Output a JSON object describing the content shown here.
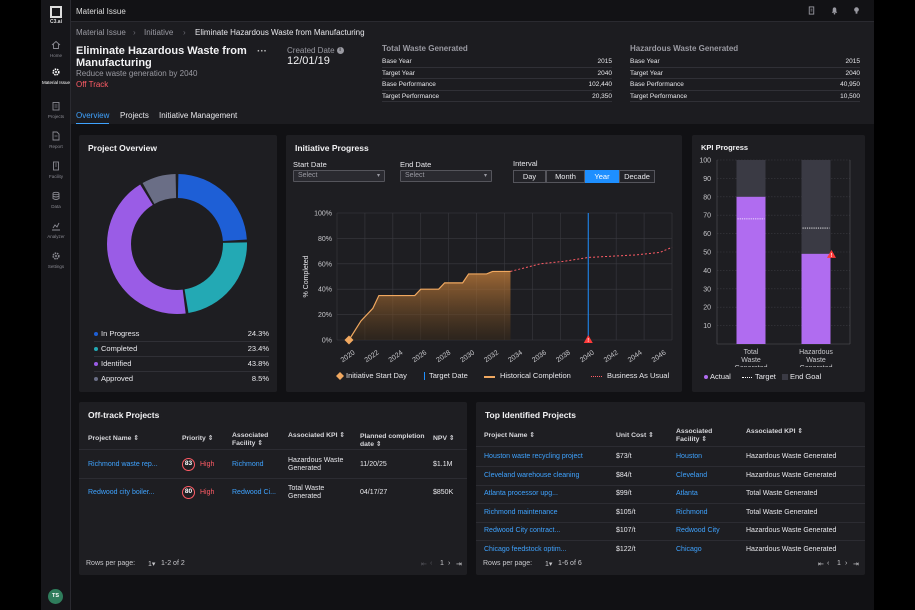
{
  "app": {
    "logo_text": "C3.ai",
    "window_title": "Material Issue",
    "user_initials": "TS"
  },
  "sidebar": {
    "items": [
      {
        "label": "Home",
        "icon": "home-icon"
      },
      {
        "label": "Material Issue",
        "icon": "gear-icon"
      },
      {
        "label": "Projects",
        "icon": "clipboard-icon"
      },
      {
        "label": "Report",
        "icon": "document-icon"
      },
      {
        "label": "Facility",
        "icon": "building-icon"
      },
      {
        "label": "Data",
        "icon": "database-icon"
      },
      {
        "label": "Analyzer",
        "icon": "chart-icon"
      },
      {
        "label": "Settings",
        "icon": "settings-icon"
      }
    ]
  },
  "breadcrumb": [
    "Material Issue",
    "Initiative",
    "Eliminate Hazardous Waste from Manufacturing"
  ],
  "header": {
    "title": "Eliminate Hazardous Waste from Manufacturing",
    "subtitle": "Reduce waste generation by 2040",
    "status": "Off Track",
    "created_label": "Created Date",
    "created_value": "12/01/19"
  },
  "stats": {
    "total": {
      "title": "Total Waste Generated",
      "rows": [
        {
          "k": "Base Year",
          "v": "2015"
        },
        {
          "k": "Target Year",
          "v": "2040"
        },
        {
          "k": "Base Performance",
          "v": "102,440"
        },
        {
          "k": "Target Performance",
          "v": "20,350"
        }
      ]
    },
    "hazard": {
      "title": "Hazardous Waste Generated",
      "rows": [
        {
          "k": "Base Year",
          "v": "2015"
        },
        {
          "k": "Target Year",
          "v": "2040"
        },
        {
          "k": "Base Performance",
          "v": "40,950"
        },
        {
          "k": "Target Performance",
          "v": "10,500"
        }
      ]
    }
  },
  "tabs": [
    "Overview",
    "Projects",
    "Initiative Management"
  ],
  "project_overview": {
    "title": "Project Overview",
    "items": [
      {
        "label": "In Progress",
        "value": "24.3%",
        "pct": 24.3,
        "color": "#1e5fd6"
      },
      {
        "label": "Completed",
        "value": "23.4%",
        "pct": 23.4,
        "color": "#23a9b4"
      },
      {
        "label": "Identified",
        "value": "43.8%",
        "pct": 43.8,
        "color": "#9a5ce6"
      },
      {
        "label": "Approved",
        "value": "8.5%",
        "pct": 8.5,
        "color": "#6a6e86"
      }
    ]
  },
  "initiative_progress": {
    "title": "Initiative Progress",
    "start_label": "Start Date",
    "end_label": "End Date",
    "start_placeholder": "Select",
    "end_placeholder": "Select",
    "interval_label": "Interval",
    "intervals": [
      "Day",
      "Month",
      "Year",
      "Decade"
    ],
    "selected_interval": "Year",
    "legend": [
      "Initiative Start Day",
      "Target Date",
      "Historical Completion",
      "Business As Usual"
    ]
  },
  "chart_data": [
    {
      "type": "area",
      "title": "Initiative Progress",
      "ylabel": "% Completed",
      "ylim": [
        0,
        100
      ],
      "yticks": [
        "100%",
        "80%",
        "60%",
        "40%",
        "20%",
        "0%"
      ],
      "x_tick_labels": [
        "2020",
        "2022",
        "2024",
        "2026",
        "2028",
        "2030",
        "2032",
        "2034",
        "2036",
        "2038",
        "2040",
        "2042",
        "2044",
        "2046"
      ],
      "xlim": [
        2019,
        2047
      ],
      "series": [
        {
          "name": "Historical Completion",
          "x": [
            2020,
            2021,
            2022,
            2022.5,
            2024,
            2025.5,
            2026,
            2027.5,
            2028,
            2029.5,
            2030,
            2031.5,
            2032,
            2033.5
          ],
          "y": [
            0,
            15,
            25,
            35,
            35,
            35,
            40,
            40,
            45,
            45,
            52,
            52,
            54,
            54
          ]
        },
        {
          "name": "Business As Usual",
          "x": [
            2033.5,
            2036,
            2038,
            2040,
            2042,
            2044,
            2046,
            2047
          ],
          "y": [
            54,
            60,
            62,
            65,
            66,
            67,
            69,
            73
          ]
        }
      ],
      "initiative_start": 2020,
      "target_date": 2040
    },
    {
      "type": "bar",
      "title": "KPI Progress",
      "categories": [
        "Total Waste Generated",
        "Hazardous Waste Generated"
      ],
      "ylim": [
        0,
        100
      ],
      "yticks": [
        "100",
        "90",
        "80",
        "70",
        "60",
        "50",
        "40",
        "30",
        "20",
        "10"
      ],
      "actual": [
        80,
        49
      ],
      "target": [
        68,
        63
      ],
      "end_goal": [
        100,
        100
      ],
      "legend": [
        "Actual",
        "Target",
        "End Goal"
      ]
    }
  ],
  "kpi": {
    "title": "KPI Progress"
  },
  "offtrack": {
    "title": "Off-track Projects",
    "headers": [
      "Project Name",
      "Priority",
      "Associated Facility",
      "Associated KPI",
      "Planned completion date",
      "NPV"
    ],
    "rows": [
      {
        "name": "Richmond waste rep...",
        "prio": "83",
        "prio_label": "High",
        "facility": "Richmond",
        "kpi": "Hazardous Waste Generated",
        "date": "11/20/25",
        "npv": "$1.1M"
      },
      {
        "name": "Redwood city boiler...",
        "prio": "80",
        "prio_label": "High",
        "facility": "Redwood Ci...",
        "kpi": "Total Waste Generated",
        "date": "04/17/27",
        "npv": "$850K"
      }
    ],
    "rows_per_page_label": "Rows per page:",
    "rows_per_page": "1",
    "range": "1-2 of 2",
    "page": "1"
  },
  "top_identified": {
    "title": "Top Identified Projects",
    "headers": [
      "Project Name",
      "Unit Cost",
      "Associated Facility",
      "Associated KPI"
    ],
    "rows": [
      {
        "name": "Houston waste recycling project",
        "cost": "$73/t",
        "facility": "Houston",
        "kpi": "Hazardous Waste Generated"
      },
      {
        "name": "Cleveland warehouse cleaning",
        "cost": "$84/t",
        "facility": "Cleveland",
        "kpi": "Hazardous Waste Generated"
      },
      {
        "name": "Atlanta processor upg...",
        "cost": "$99/t",
        "facility": "Atlanta",
        "kpi": "Total Waste Generated"
      },
      {
        "name": "Richmond maintenance",
        "cost": "$105/t",
        "facility": "Richmond",
        "kpi": "Total Waste Generated"
      },
      {
        "name": "Redwood City contract...",
        "cost": "$107/t",
        "facility": "Redwood City",
        "kpi": "Hazardous Waste Generated"
      },
      {
        "name": "Chicago feedstock optim...",
        "cost": "$122/t",
        "facility": "Chicago",
        "kpi": "Hazardous Waste Generated"
      }
    ],
    "rows_per_page_label": "Rows per page:",
    "rows_per_page": "1",
    "range": "1-6 of 6",
    "page": "1"
  }
}
